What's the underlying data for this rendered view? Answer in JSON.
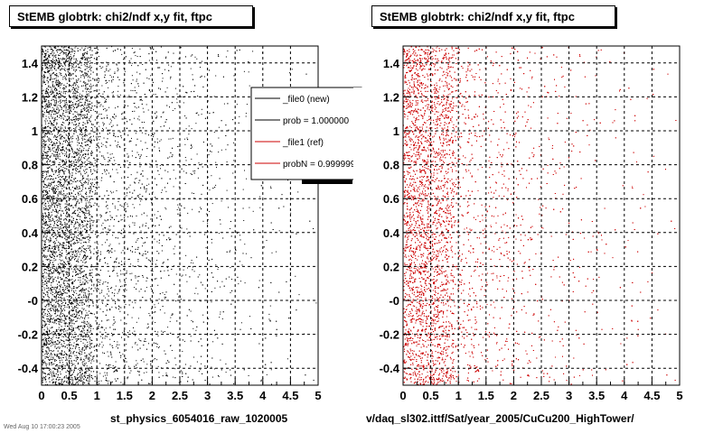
{
  "panels": [
    {
      "title": "StEMB globtrk: chi2/ndf x,y fit, ftpc",
      "xcaption": "st_physics_6054016_raw_1020005"
    },
    {
      "title": "StEMB globtrk: chi2/ndf x,y fit, ftpc",
      "xcaption": "v/daq_sl302.ittf/Sat/year_2005/CuCu200_HighTower/"
    }
  ],
  "legend": {
    "entries": [
      {
        "label": "_file0 (new)",
        "color": "#000000"
      },
      {
        "label": "prob = 1.000000",
        "color": "#000000"
      },
      {
        "label": "_file1 (ref)",
        "color": "#cc0000"
      },
      {
        "label": "probN = 0.999999",
        "color": "#cc0000"
      }
    ]
  },
  "footer": "Wed Aug 10 17:00:23 2005",
  "chart_data": [
    {
      "type": "scatter",
      "title": "StEMB globtrk: chi2/ndf x,y fit, ftpc",
      "xlabel": "st_physics_6054016_raw_1020005",
      "ylabel": "",
      "xlim": [
        0,
        5
      ],
      "ylim": [
        -0.5,
        1.5
      ],
      "x_ticks": [
        "0",
        "0.5",
        "1",
        "1.5",
        "2",
        "2.5",
        "3",
        "3.5",
        "4",
        "4.5",
        "5"
      ],
      "y_ticks": [
        "-0.4",
        "-0.2",
        "-0",
        "0.2",
        "0.4",
        "0.6",
        "0.8",
        "1",
        "1.2",
        "1.4"
      ],
      "grid": true,
      "marker_color": "#000000",
      "series": [
        {
          "name": "_file0 (new)",
          "density": "decreasing with x, highest for x < 1"
        }
      ],
      "legend_position": "top-right"
    },
    {
      "type": "scatter",
      "title": "StEMB globtrk: chi2/ndf x,y fit, ftpc",
      "xlabel": "v/daq_sl302.ittf/Sat/year_2005/CuCu200_HighTower/",
      "ylabel": "",
      "xlim": [
        0,
        5
      ],
      "ylim": [
        -0.5,
        1.5
      ],
      "x_ticks": [
        "0",
        "0.5",
        "1",
        "1.5",
        "2",
        "2.5",
        "3",
        "3.5",
        "4",
        "4.5",
        "5"
      ],
      "y_ticks": [
        "-0.4",
        "-0.2",
        "-0",
        "0.2",
        "0.4",
        "0.6",
        "0.8",
        "1",
        "1.2",
        "1.4"
      ],
      "grid": true,
      "marker_color": "#cc0000",
      "series": [
        {
          "name": "_file1 (ref)",
          "density": "decreasing with x, highest for x < 1"
        }
      ]
    }
  ]
}
